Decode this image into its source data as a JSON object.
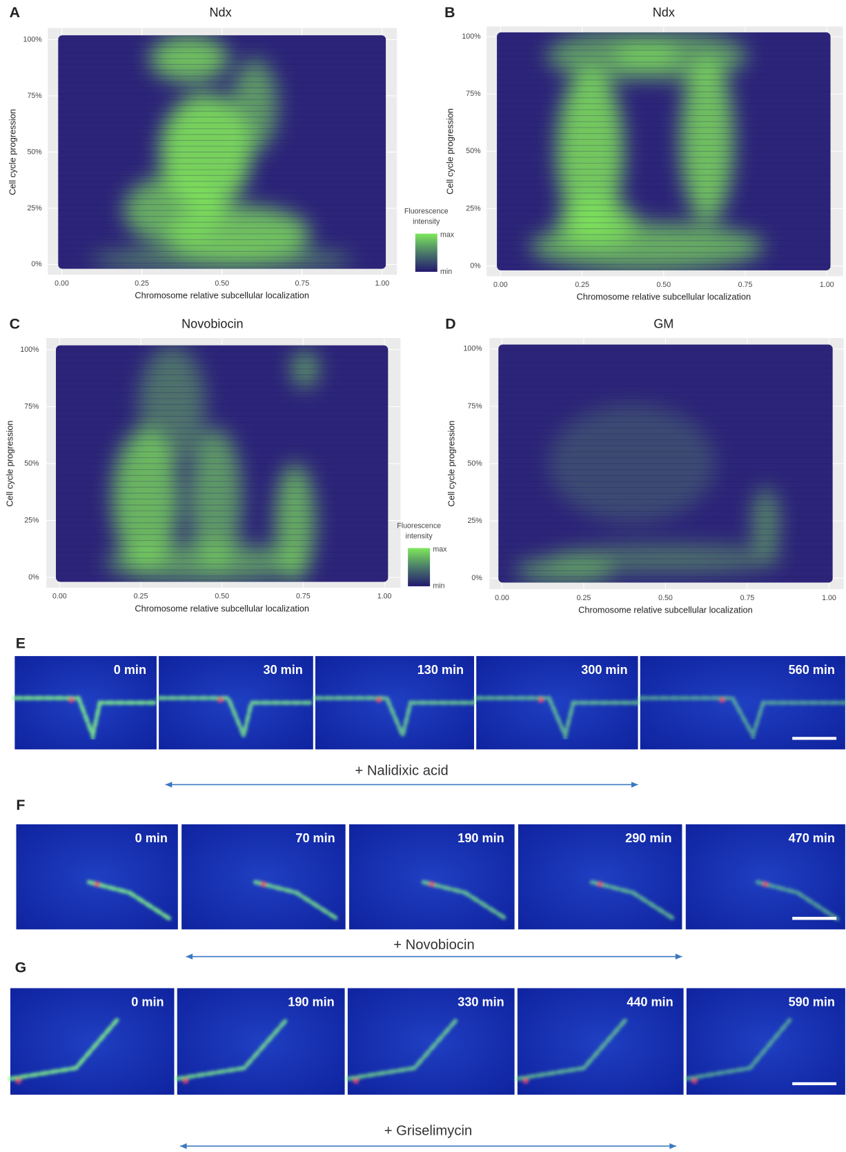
{
  "chart_data": [
    {
      "type": "heatmap",
      "letter": "A",
      "title": "Ndx",
      "x_label": "Chromosome relative subcellular localization",
      "y_label": "Cell cycle progression",
      "xlim": [
        0,
        1
      ],
      "xticks": [
        {
          "value": 0,
          "label": "0.00"
        },
        {
          "value": 0.25,
          "label": "0.25"
        },
        {
          "value": 0.5,
          "label": "0.50"
        },
        {
          "value": 0.75,
          "label": "0.75"
        },
        {
          "value": 1,
          "label": "1.00"
        }
      ],
      "ylim": [
        0,
        100
      ],
      "yticks": [
        {
          "value": 0,
          "label": "0%"
        },
        {
          "value": 25,
          "label": "25%"
        },
        {
          "value": 50,
          "label": "50%"
        },
        {
          "value": 75,
          "label": "75%"
        },
        {
          "value": 100,
          "label": "100%"
        }
      ],
      "legend": {
        "title": [
          "Fluorescence",
          "intensity"
        ],
        "max": "max",
        "min": "min"
      }
    },
    {
      "type": "heatmap",
      "letter": "B",
      "title": "Ndx",
      "x_label": "Chromosome relative subcellular localization",
      "y_label": "Cell cycle progression",
      "xlim": [
        0,
        1
      ],
      "xticks": [
        {
          "value": 0,
          "label": "0.00"
        },
        {
          "value": 0.25,
          "label": "0.25"
        },
        {
          "value": 0.5,
          "label": "0.50"
        },
        {
          "value": 0.75,
          "label": "0.75"
        },
        {
          "value": 1,
          "label": "1.00"
        }
      ],
      "ylim": [
        0,
        100
      ],
      "yticks": [
        {
          "value": 0,
          "label": "0%"
        },
        {
          "value": 25,
          "label": "25%"
        },
        {
          "value": 50,
          "label": "50%"
        },
        {
          "value": 75,
          "label": "75%"
        },
        {
          "value": 100,
          "label": "100%"
        }
      ]
    },
    {
      "type": "heatmap",
      "letter": "C",
      "title": "Novobiocin",
      "x_label": "Chromosome relative subcellular localization",
      "y_label": "Cell cycle progression",
      "xlim": [
        0,
        1
      ],
      "xticks": [
        {
          "value": 0,
          "label": "0.00"
        },
        {
          "value": 0.25,
          "label": "0.25"
        },
        {
          "value": 0.5,
          "label": "0.50"
        },
        {
          "value": 0.75,
          "label": "0.75"
        },
        {
          "value": 1,
          "label": "1.00"
        }
      ],
      "ylim": [
        0,
        100
      ],
      "yticks": [
        {
          "value": 0,
          "label": "0%"
        },
        {
          "value": 25,
          "label": "25%"
        },
        {
          "value": 50,
          "label": "50%"
        },
        {
          "value": 75,
          "label": "75%"
        },
        {
          "value": 100,
          "label": "100%"
        }
      ],
      "legend": {
        "title": [
          "Fluorescence",
          "intensity"
        ],
        "max": "max",
        "min": "min"
      }
    },
    {
      "type": "heatmap",
      "letter": "D",
      "title": "GM",
      "x_label": "Chromosome relative subcellular localization",
      "y_label": "Cell cycle progression",
      "xlim": [
        0,
        1
      ],
      "xticks": [
        {
          "value": 0,
          "label": "0.00"
        },
        {
          "value": 0.25,
          "label": "0.25"
        },
        {
          "value": 0.5,
          "label": "0.50"
        },
        {
          "value": 0.75,
          "label": "0.75"
        },
        {
          "value": 1,
          "label": "1.00"
        }
      ],
      "ylim": [
        0,
        100
      ],
      "yticks": [
        {
          "value": 0,
          "label": "0%"
        },
        {
          "value": 25,
          "label": "25%"
        },
        {
          "value": 50,
          "label": "50%"
        },
        {
          "value": 75,
          "label": "75%"
        },
        {
          "value": 100,
          "label": "100%"
        }
      ]
    }
  ],
  "micrographs": [
    {
      "letter": "E",
      "times": [
        "0 min",
        "30 min",
        "130 min",
        "300 min",
        "560 min"
      ],
      "treatment": "+ Nalidixic acid"
    },
    {
      "letter": "F",
      "times": [
        "0 min",
        "70 min",
        "190 min",
        "290 min",
        "470 min"
      ],
      "treatment": "+ Novobiocin"
    },
    {
      "letter": "G",
      "times": [
        "0 min",
        "190 min",
        "330 min",
        "440 min",
        "590 min"
      ],
      "treatment": "+ Griselimycin"
    }
  ]
}
